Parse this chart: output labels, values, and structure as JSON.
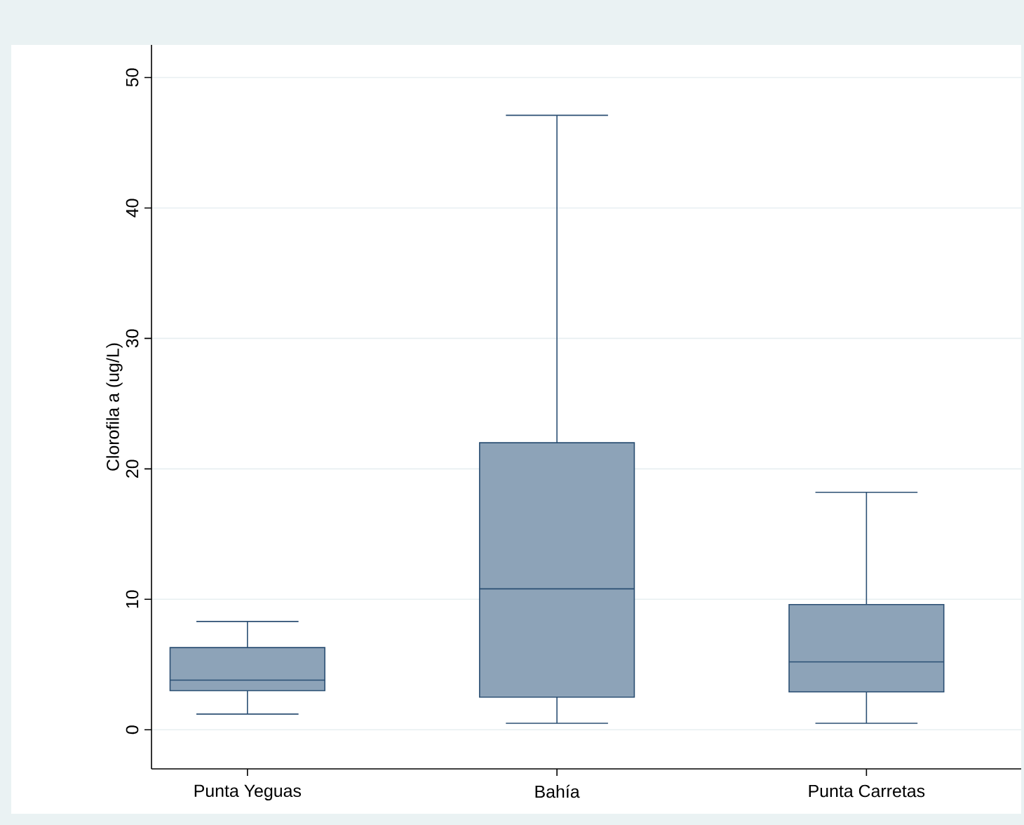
{
  "chart_data": {
    "type": "box",
    "ylabel": "Clorofila a (ug/L)",
    "categories": [
      "Punta Yeguas",
      "Bahía",
      "Punta Carretas"
    ],
    "boxes": [
      {
        "low": 1.2,
        "q1": 3.0,
        "median": 3.8,
        "q3": 6.3,
        "high": 8.3
      },
      {
        "low": 0.5,
        "q1": 2.5,
        "median": 10.8,
        "q3": 22.0,
        "high": 47.1
      },
      {
        "low": 0.5,
        "q1": 2.9,
        "median": 5.2,
        "q3": 9.6,
        "high": 18.2
      }
    ],
    "color": "#8da3b8",
    "ylim": [
      -3,
      52.5
    ],
    "yticks": [
      0,
      10,
      20,
      30,
      40,
      50
    ],
    "grid": "y"
  }
}
